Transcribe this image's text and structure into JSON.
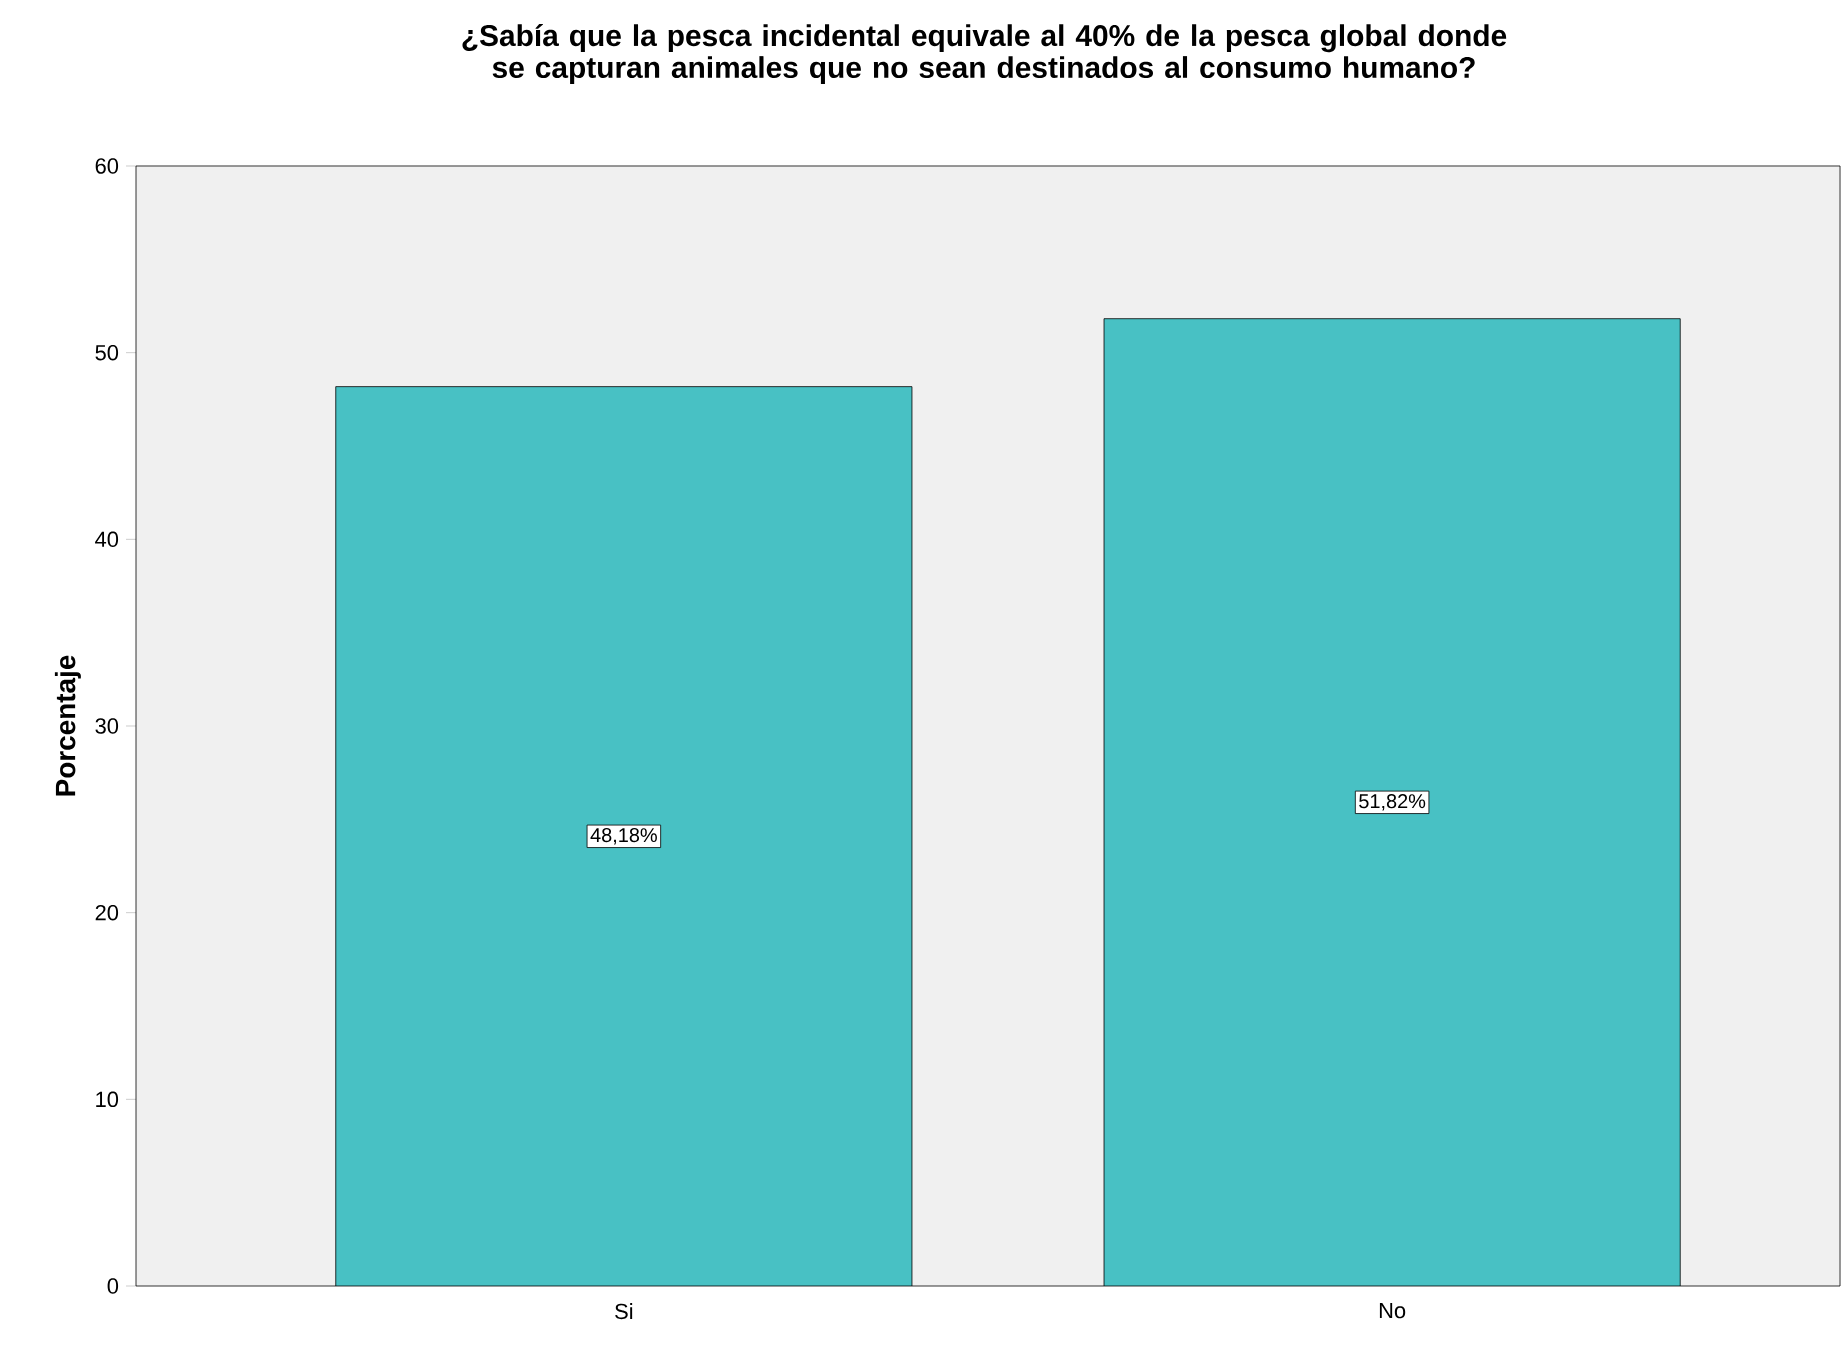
{
  "chart_data": {
    "type": "bar",
    "title": "¿Sabía que la pesca incidental equivale al 40% de la pesca global donde se capturan animales que no sean destinados al consumo humano?",
    "ylabel": "Porcentaje",
    "categories": [
      "Si",
      "No"
    ],
    "values": [
      48.18,
      51.82
    ],
    "value_labels": [
      "48,18%",
      "51,82%"
    ],
    "color": "#48c1c4",
    "ylim": [
      0,
      60
    ],
    "yticks": [
      0,
      10,
      20,
      30,
      40,
      50,
      60
    ]
  }
}
